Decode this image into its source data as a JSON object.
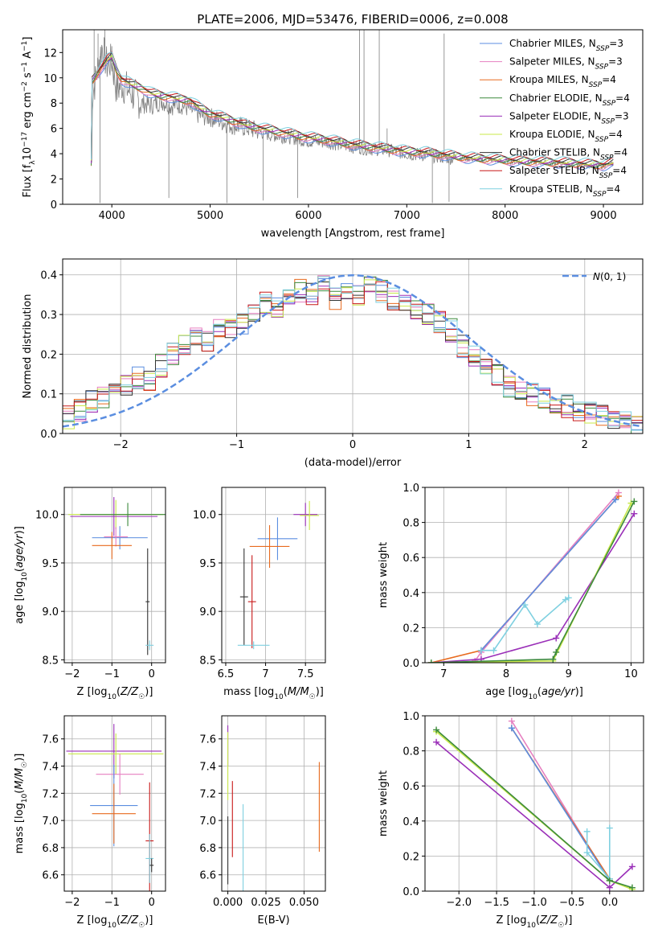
{
  "chart_data": [
    {
      "id": "spectrum",
      "type": "line",
      "title": "PLATE=2006, MJD=53476, FIBERID=0006, z=0.008",
      "xlabel": "wavelength [Angstrom, rest frame]",
      "ylabel": "Flux [f_λ 10^-17 erg cm^-2 s^-1 A^-1]",
      "xlim": [
        3500,
        9400
      ],
      "ylim": [
        0,
        13.8
      ],
      "xticks": [
        4000,
        5000,
        6000,
        7000,
        8000,
        9000
      ],
      "yticks": [
        0,
        2,
        4,
        6,
        8,
        10,
        12
      ],
      "grid": false,
      "legend_position": "top-right",
      "series": [
        {
          "name": "Chabrier MILES, N_SSP=3",
          "color": "#5b8ee0"
        },
        {
          "name": "Salpeter MILES, N_SSP=3",
          "color": "#e67fc0"
        },
        {
          "name": "Kroupa MILES, N_SSP=4",
          "color": "#e86a1e"
        },
        {
          "name": "Chabrier ELODIE, N_SSP=4",
          "color": "#3c8a3c"
        },
        {
          "name": "Salpeter ELODIE, N_SSP=3",
          "color": "#9a2fb8"
        },
        {
          "name": "Kroupa ELODIE, N_SSP=4",
          "color": "#c9e84a"
        },
        {
          "name": "Chabrier STELIB, N_SSP=4",
          "color": "#333333"
        },
        {
          "name": "Salpeter STELIB, N_SSP=4",
          "color": "#c81818"
        },
        {
          "name": "Kroupa STELIB, N_SSP=4",
          "color": "#7fd0e0"
        }
      ],
      "observed_color": "#7f7f7f",
      "model_x": [
        3800,
        3900,
        3950,
        4000,
        4050,
        4100,
        4200,
        4300,
        4400,
        4500,
        4600,
        4700,
        4800,
        4900,
        5000,
        5200,
        5400,
        5600,
        5800,
        6000,
        6200,
        6400,
        6600,
        6800,
        7000,
        7200,
        7400,
        7600,
        7800,
        8000,
        8200,
        8400,
        8600,
        8800,
        9000,
        9100
      ],
      "model_y": [
        9.8,
        10.9,
        11.4,
        11.7,
        10.6,
        9.9,
        9.5,
        9.2,
        8.8,
        8.6,
        8.5,
        8.3,
        8.2,
        7.6,
        7.2,
        6.7,
        6.2,
        5.9,
        5.6,
        5.3,
        5.1,
        4.8,
        4.6,
        4.4,
        4.2,
        4.1,
        3.9,
        3.7,
        3.6,
        3.5,
        3.4,
        3.35,
        3.3,
        3.2,
        3.1,
        3.3
      ],
      "observed_y": [
        8.5,
        12.5,
        11.0,
        11.3,
        9.0,
        9.5,
        8.8,
        8.0,
        7.8,
        8.2,
        7.8,
        7.9,
        7.5,
        7.0,
        6.9,
        6.3,
        6.0,
        5.5,
        5.3,
        5.0,
        4.9,
        4.6,
        4.4,
        4.3,
        4.0,
        3.9,
        3.7,
        3.6,
        3.5,
        3.4,
        3.3,
        3.3,
        3.2,
        3.1,
        3.0,
        3.2
      ]
    },
    {
      "id": "residuals",
      "type": "step",
      "xlabel": "(data-model)/error",
      "ylabel": "Normed distribution",
      "xlim": [
        -2.5,
        2.5
      ],
      "ylim": [
        0,
        0.44
      ],
      "xticks": [
        -2,
        -1,
        0,
        1,
        2
      ],
      "yticks": [
        0.0,
        0.1,
        0.2,
        0.3,
        0.4
      ],
      "grid": true,
      "legend": "N(0,1)",
      "legend_position": "top-right",
      "bins": [
        -2.5,
        -2.4,
        -2.3,
        -2.2,
        -2.1,
        -2.0,
        -1.9,
        -1.8,
        -1.7,
        -1.6,
        -1.5,
        -1.4,
        -1.3,
        -1.2,
        -1.1,
        -1.0,
        -0.9,
        -0.8,
        -0.7,
        -0.6,
        -0.5,
        -0.4,
        -0.3,
        -0.2,
        -0.1,
        0.0,
        0.1,
        0.2,
        0.3,
        0.4,
        0.5,
        0.6,
        0.7,
        0.8,
        0.9,
        1.0,
        1.1,
        1.2,
        1.3,
        1.4,
        1.5,
        1.6,
        1.7,
        1.8,
        1.9,
        2.0,
        2.1,
        2.2,
        2.3,
        2.4,
        2.5
      ],
      "hist_values": [
        0.04,
        0.06,
        0.08,
        0.09,
        0.1,
        0.12,
        0.14,
        0.13,
        0.17,
        0.2,
        0.22,
        0.24,
        0.23,
        0.26,
        0.27,
        0.28,
        0.3,
        0.33,
        0.32,
        0.35,
        0.36,
        0.35,
        0.37,
        0.34,
        0.36,
        0.35,
        0.37,
        0.36,
        0.34,
        0.33,
        0.31,
        0.3,
        0.28,
        0.26,
        0.22,
        0.2,
        0.18,
        0.15,
        0.12,
        0.11,
        0.1,
        0.09,
        0.08,
        0.07,
        0.06,
        0.05,
        0.05,
        0.04,
        0.03,
        0.02
      ],
      "gaussian": "N(0,1)"
    },
    {
      "id": "age-vs-Z",
      "type": "errorbar",
      "xlabel": "Z [log10(Z/Z☉)]",
      "ylabel": "age  [log10(age/yr)]",
      "xlim": [
        -2.2,
        0.35
      ],
      "ylim": [
        8.47,
        10.28
      ],
      "xticks": [
        -2,
        -1,
        0
      ],
      "yticks": [
        8.5,
        9.0,
        9.5,
        10.0
      ],
      "grid": true,
      "points": [
        {
          "x": -0.9,
          "y": 10.0,
          "xerr": 1.2,
          "yerr": 0.15,
          "color": "#c9e84a"
        },
        {
          "x": -0.95,
          "y": 9.98,
          "xerr": 1.1,
          "yerr": 0.2,
          "color": "#9a2fb8"
        },
        {
          "x": -0.6,
          "y": 10.0,
          "xerr": 1.2,
          "yerr": 0.12,
          "color": "#3c8a3c"
        },
        {
          "x": -0.8,
          "y": 9.76,
          "xerr": 0.7,
          "yerr": 0.12,
          "color": "#5b8ee0"
        },
        {
          "x": -0.9,
          "y": 9.77,
          "xerr": 0.3,
          "yerr": 0.1,
          "color": "#e67fc0"
        },
        {
          "x": -1.0,
          "y": 9.68,
          "xerr": 0.5,
          "yerr": 0.14,
          "color": "#e86a1e"
        },
        {
          "x": -0.1,
          "y": 9.1,
          "xerr": 0.05,
          "yerr": 0.55,
          "color": "#333333"
        },
        {
          "x": -0.05,
          "y": 8.65,
          "xerr": 0.1,
          "yerr": 0.05,
          "color": "#7fd0e0"
        }
      ]
    },
    {
      "id": "age-vs-mass",
      "type": "errorbar",
      "xlabel": "mass [log10(M/M☉)]",
      "ylabel": "",
      "xlim": [
        6.45,
        7.75
      ],
      "ylim": [
        8.47,
        10.28
      ],
      "xticks": [
        6.5,
        7.0,
        7.5
      ],
      "yticks": [
        8.5,
        9.0,
        9.5,
        10.0
      ],
      "grid": true,
      "points": [
        {
          "x": 7.5,
          "y": 10.0,
          "xerr": 0.15,
          "yerr": 0.12,
          "color": "#9a2fb8"
        },
        {
          "x": 7.55,
          "y": 9.99,
          "xerr": 0.12,
          "yerr": 0.15,
          "color": "#c9e84a"
        },
        {
          "x": 7.15,
          "y": 9.75,
          "xerr": 0.25,
          "yerr": 0.22,
          "color": "#5b8ee0"
        },
        {
          "x": 7.05,
          "y": 9.67,
          "xerr": 0.25,
          "yerr": 0.22,
          "color": "#e86a1e"
        },
        {
          "x": 6.73,
          "y": 9.15,
          "xerr": 0.05,
          "yerr": 0.5,
          "color": "#333333"
        },
        {
          "x": 6.83,
          "y": 9.1,
          "xerr": 0.05,
          "yerr": 0.48,
          "color": "#c81818"
        },
        {
          "x": 6.85,
          "y": 8.65,
          "xerr": 0.2,
          "yerr": 0.04,
          "color": "#7fd0e0"
        }
      ]
    },
    {
      "id": "mass-weight-vs-age",
      "type": "line",
      "xlabel": "age  [log10(age/yr)]",
      "ylabel": "mass weight",
      "xlim": [
        6.7,
        10.2
      ],
      "ylim": [
        0,
        1
      ],
      "xticks": [
        7,
        8,
        9,
        10
      ],
      "yticks": [
        0.0,
        0.2,
        0.4,
        0.6,
        0.8,
        1.0
      ],
      "grid": true,
      "series": [
        {
          "color": "#e86a1e",
          "x": [
            6.8,
            7.6,
            9.8
          ],
          "y": [
            0.0,
            0.07,
            0.95
          ]
        },
        {
          "color": "#e67fc0",
          "x": [
            7.5,
            7.6,
            9.8
          ],
          "y": [
            0.01,
            0.06,
            0.97
          ]
        },
        {
          "color": "#5b8ee0",
          "x": [
            7.6,
            9.75
          ],
          "y": [
            0.07,
            0.93
          ]
        },
        {
          "color": "#7fd0e0",
          "x": [
            7.6,
            7.8,
            8.3,
            8.5,
            8.95,
            9.0
          ],
          "y": [
            0.07,
            0.07,
            0.33,
            0.22,
            0.36,
            0.37
          ]
        },
        {
          "color": "#9a2fb8",
          "x": [
            6.8,
            7.6,
            8.8,
            10.05
          ],
          "y": [
            0.0,
            0.02,
            0.14,
            0.85
          ]
        },
        {
          "color": "#c9e84a",
          "x": [
            6.8,
            8.75,
            10.0
          ],
          "y": [
            0.0,
            0.01,
            0.91
          ]
        },
        {
          "color": "#3c8a3c",
          "x": [
            6.8,
            8.75,
            8.8,
            10.05
          ],
          "y": [
            0.0,
            0.02,
            0.06,
            0.92
          ]
        }
      ]
    },
    {
      "id": "mass-vs-Z",
      "type": "errorbar",
      "xlabel": "Z [log10(Z/Z☉)]",
      "ylabel": "mass [log10(M/M☉)]",
      "xlim": [
        -2.2,
        0.35
      ],
      "ylim": [
        6.48,
        7.77
      ],
      "xticks": [
        -2,
        -1,
        0
      ],
      "yticks": [
        6.6,
        6.8,
        7.0,
        7.2,
        7.4,
        7.6
      ],
      "grid": true,
      "points": [
        {
          "x": -0.95,
          "y": 7.51,
          "xerr": 1.2,
          "yerr": 0.2,
          "color": "#9a2fb8"
        },
        {
          "x": -0.9,
          "y": 7.49,
          "xerr": 1.2,
          "yerr": 0.15,
          "color": "#c9e84a"
        },
        {
          "x": -0.8,
          "y": 7.34,
          "xerr": 0.6,
          "yerr": 0.15,
          "color": "#e67fc0"
        },
        {
          "x": -0.95,
          "y": 7.11,
          "xerr": 0.6,
          "yerr": 0.3,
          "color": "#5b8ee0"
        },
        {
          "x": -0.95,
          "y": 7.05,
          "xerr": 0.55,
          "yerr": 0.22,
          "color": "#e86a1e"
        },
        {
          "x": -0.05,
          "y": 6.85,
          "xerr": 0.1,
          "yerr": 0.43,
          "color": "#c81818"
        },
        {
          "x": -0.05,
          "y": 6.72,
          "xerr": 0.1,
          "yerr": 0.18,
          "color": "#7fd0e0"
        },
        {
          "x": 0.0,
          "y": 6.67,
          "xerr": 0.05,
          "yerr": 0.05,
          "color": "#333333"
        }
      ]
    },
    {
      "id": "mass-vs-EBV",
      "type": "errorbar",
      "xlabel": "E(B-V)",
      "ylabel": "",
      "xlim": [
        -0.004,
        0.064
      ],
      "ylim": [
        6.48,
        7.77
      ],
      "xticks": [
        0.0,
        0.025,
        0.05
      ],
      "xticklabels": [
        "0.000",
        "0.025",
        "0.050"
      ],
      "yticks": [
        6.6,
        6.8,
        7.0,
        7.2,
        7.4,
        7.6
      ],
      "grid": true,
      "points": [
        {
          "x": 0.0,
          "y": 7.55,
          "xerr": 0,
          "yerr": 0.15,
          "color": "#9a2fb8"
        },
        {
          "x": 0.0,
          "y": 7.4,
          "xerr": 0,
          "yerr": 0.25,
          "color": "#c9e84a"
        },
        {
          "x": 0.0,
          "y": 6.78,
          "xerr": 0,
          "yerr": 0.25,
          "color": "#333333"
        },
        {
          "x": 0.003,
          "y": 7.01,
          "xerr": 0,
          "yerr": 0.28,
          "color": "#c81818"
        },
        {
          "x": 0.01,
          "y": 6.72,
          "xerr": 0,
          "yerr": 0.4,
          "color": "#7fd0e0"
        },
        {
          "x": 0.06,
          "y": 7.1,
          "xerr": 0,
          "yerr": 0.33,
          "color": "#e86a1e"
        }
      ]
    },
    {
      "id": "mass-weight-vs-Z",
      "type": "line",
      "xlabel": "Z [log10(Z/Z☉)]",
      "ylabel": "mass weight",
      "xlim": [
        -2.45,
        0.45
      ],
      "ylim": [
        0,
        1
      ],
      "xticks": [
        -2.0,
        -1.5,
        -1.0,
        -0.5,
        0.0
      ],
      "xticklabels": [
        "−2.0",
        "−1.5",
        "−1.0",
        "−0.5",
        "0.0"
      ],
      "yticks": [
        0.0,
        0.2,
        0.4,
        0.6,
        0.8,
        1.0
      ],
      "grid": true,
      "series": [
        {
          "color": "#e67fc0",
          "x": [
            -1.3,
            0.0
          ],
          "y": [
            0.97,
            0.06
          ]
        },
        {
          "color": "#e86a1e",
          "x": [
            -1.3,
            0.0
          ],
          "y": [
            0.93,
            0.07
          ]
        },
        {
          "color": "#5b8ee0",
          "x": [
            -1.3,
            0.0
          ],
          "y": [
            0.93,
            0.06
          ]
        },
        {
          "color": "#7fd0e0",
          "x": [
            -0.3,
            -0.3,
            0.0,
            0.0
          ],
          "y": [
            0.34,
            0.22,
            0.07,
            0.36
          ]
        },
        {
          "color": "#9a2fb8",
          "x": [
            -2.3,
            0.0,
            0.3
          ],
          "y": [
            0.85,
            0.02,
            0.14
          ]
        },
        {
          "color": "#c9e84a",
          "x": [
            -2.3,
            0.0,
            0.3
          ],
          "y": [
            0.91,
            0.06,
            0.01
          ]
        },
        {
          "color": "#3c8a3c",
          "x": [
            -2.3,
            0.0,
            0.3
          ],
          "y": [
            0.92,
            0.06,
            0.02
          ]
        }
      ]
    }
  ]
}
